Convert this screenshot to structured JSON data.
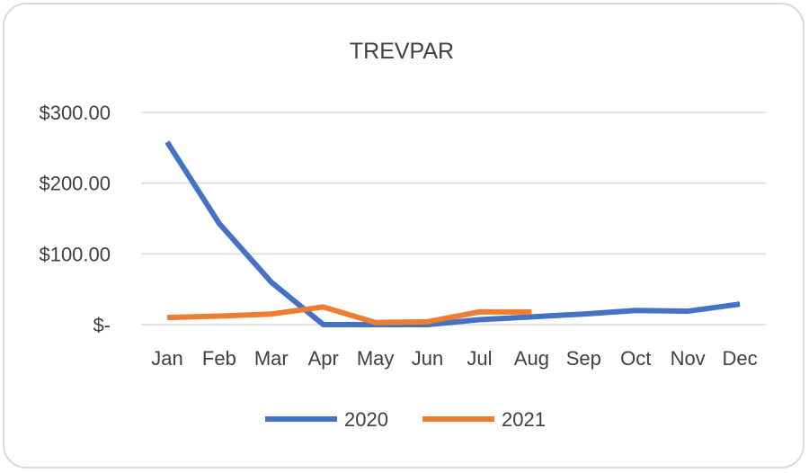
{
  "chart_data": {
    "type": "line",
    "title": "TREVPAR",
    "xlabel": "",
    "ylabel": "",
    "categories": [
      "Jan",
      "Feb",
      "Mar",
      "Apr",
      "May",
      "Jun",
      "Jul",
      "Aug",
      "Sep",
      "Oct",
      "Nov",
      "Dec"
    ],
    "y_ticks": [
      {
        "value": 300,
        "label": "$300.00"
      },
      {
        "value": 200,
        "label": "$200.00"
      },
      {
        "value": 100,
        "label": "$100.00"
      },
      {
        "value": 0,
        "label": "$-"
      }
    ],
    "ylim": [
      0,
      300
    ],
    "grid": true,
    "legend_position": "bottom",
    "series": [
      {
        "name": "2020",
        "color": "#4472c4",
        "values": [
          258,
          143,
          60,
          0,
          0,
          0,
          7,
          11,
          15,
          20,
          19,
          29
        ]
      },
      {
        "name": "2021",
        "color": "#ed7d31",
        "values": [
          10,
          12,
          15,
          25,
          3,
          4,
          18,
          18,
          null,
          null,
          null,
          null
        ]
      }
    ]
  }
}
